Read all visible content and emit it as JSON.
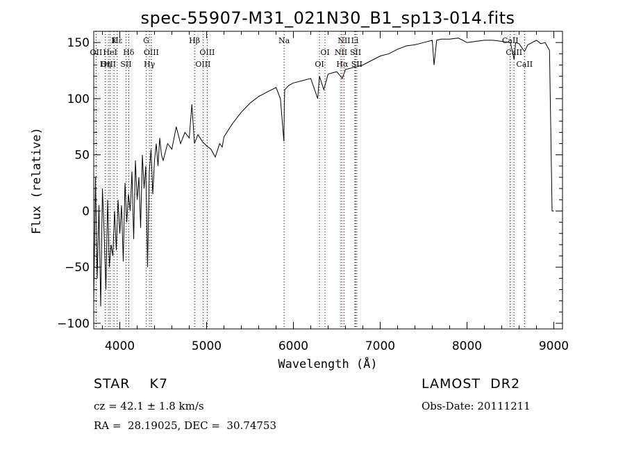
{
  "chart_data": {
    "type": "line",
    "title": "spec-55907-M31_021N30_B1_sp13-014.fits",
    "xlabel": "Wavelength (Å)",
    "ylabel": "Flux (relative)",
    "xlim": [
      3700,
      9100
    ],
    "ylim": [
      -105,
      160
    ],
    "x_ticks": [
      4000,
      5000,
      6000,
      7000,
      8000,
      9000
    ],
    "y_ticks": [
      -100,
      -50,
      0,
      50,
      100,
      150
    ],
    "grid": false,
    "series": [
      {
        "x": [
          3700,
          3720,
          3740,
          3760,
          3780,
          3800,
          3820,
          3840,
          3860,
          3880,
          3900,
          3920,
          3940,
          3960,
          3980,
          4000,
          4020,
          4040,
          4060,
          4080,
          4100,
          4120,
          4140,
          4160,
          4180,
          4200,
          4220,
          4240,
          4260,
          4280,
          4300,
          4320,
          4340,
          4360,
          4380,
          4400,
          4420,
          4440,
          4460,
          4480,
          4500,
          4550,
          4600,
          4650,
          4700,
          4750,
          4800,
          4830,
          4860,
          4900,
          4950,
          5000,
          5050,
          5100,
          5150,
          5180,
          5200,
          5300,
          5400,
          5500,
          5600,
          5700,
          5800,
          5850,
          5890,
          5895,
          5900,
          5950,
          6000,
          6100,
          6200,
          6280,
          6300,
          6350,
          6400,
          6500,
          6563,
          6600,
          6700,
          6800,
          6900,
          7000,
          7100,
          7200,
          7300,
          7400,
          7500,
          7600,
          7620,
          7650,
          7700,
          7800,
          7900,
          8000,
          8100,
          8200,
          8300,
          8400,
          8500,
          8542,
          8560,
          8600,
          8662,
          8700,
          8800,
          8850,
          8900,
          8950,
          8980,
          9000
        ],
        "y": [
          -80,
          30,
          -60,
          5,
          -85,
          20,
          -20,
          -70,
          10,
          -50,
          -30,
          -40,
          0,
          -35,
          10,
          -20,
          5,
          -45,
          25,
          -10,
          15,
          0,
          35,
          -25,
          45,
          10,
          30,
          -15,
          50,
          20,
          40,
          -50,
          35,
          55,
          15,
          45,
          60,
          40,
          65,
          50,
          45,
          60,
          55,
          75,
          60,
          70,
          65,
          95,
          60,
          68,
          62,
          58,
          55,
          48,
          60,
          57,
          66,
          78,
          88,
          96,
          102,
          106,
          110,
          100,
          62,
          95,
          108,
          112,
          114,
          116,
          118,
          100,
          120,
          108,
          122,
          124,
          118,
          126,
          128,
          130,
          134,
          138,
          140,
          144,
          147,
          148,
          150,
          152,
          130,
          152,
          153,
          153,
          154,
          150,
          151,
          152,
          152,
          151,
          150,
          135,
          150,
          149,
          142,
          148,
          152,
          149,
          150,
          143,
          0,
          0
        ]
      }
    ],
    "line_marks": [
      {
        "label": "Hε",
        "x": 3970,
        "row": 1,
        "color": "#000000"
      },
      {
        "label": "OII",
        "x": 3727,
        "row": 2,
        "color": "#000000"
      },
      {
        "label": "OIII",
        "x": 3869,
        "row": 3,
        "color": "#000000"
      },
      {
        "label": "HeI",
        "x": 3889,
        "row": 2,
        "color": "#000000"
      },
      {
        "label": "Hη",
        "x": 3835,
        "row": 3,
        "color": "#000000"
      },
      {
        "label": "K",
        "x": 3934,
        "row": 1,
        "color": "#000000"
      },
      {
        "label": "Hδ",
        "x": 4102,
        "row": 2,
        "color": "#000000"
      },
      {
        "label": "SII",
        "x": 4072,
        "row": 3,
        "color": "#000000"
      },
      {
        "label": "G",
        "x": 4304,
        "row": 1,
        "color": "#000000"
      },
      {
        "label": "OIII",
        "x": 4363,
        "row": 2,
        "color": "#000000"
      },
      {
        "label": "Hγ",
        "x": 4341,
        "row": 3,
        "color": "#000000"
      },
      {
        "label": "Hβ",
        "x": 4861,
        "row": 1,
        "color": "#000000"
      },
      {
        "label": "OIII",
        "x": 5007,
        "row": 2,
        "color": "#000000"
      },
      {
        "label": "OIII",
        "x": 4959,
        "row": 3,
        "color": "#000000"
      },
      {
        "label": "Na",
        "x": 5893,
        "row": 1,
        "color": "#000000"
      },
      {
        "label": "OI",
        "x": 6364,
        "row": 2,
        "color": "#000000"
      },
      {
        "label": "OI",
        "x": 6300,
        "row": 3,
        "color": "#000000"
      },
      {
        "label": "NII",
        "x": 6583,
        "row": 1,
        "color": "#000000"
      },
      {
        "label": "Li",
        "x": 6708,
        "row": 1,
        "color": "#000000"
      },
      {
        "label": "NII",
        "x": 6548,
        "row": 2,
        "color": "#000000"
      },
      {
        "label": "SII",
        "x": 6716,
        "row": 2,
        "color": "#000000"
      },
      {
        "label": "Hα",
        "x": 6563,
        "row": 3,
        "color": "#ff0000"
      },
      {
        "label": "SII",
        "x": 6731,
        "row": 3,
        "color": "#000000"
      },
      {
        "label": "CaII",
        "x": 8498,
        "row": 1,
        "color": "#000000"
      },
      {
        "label": "CaII",
        "x": 8542,
        "row": 2,
        "color": "#000000"
      },
      {
        "label": "CaII",
        "x": 8662,
        "row": 3,
        "color": "#000000"
      }
    ]
  },
  "info": {
    "object_class": "STAR    K7",
    "survey": "LAMOST  DR2",
    "cz": "cz = 42.1 ± 1.8 km/s",
    "obs_date": "Obs-Date: 20111211",
    "coords": "RA =  28.19025, DEC =  30.74753"
  }
}
